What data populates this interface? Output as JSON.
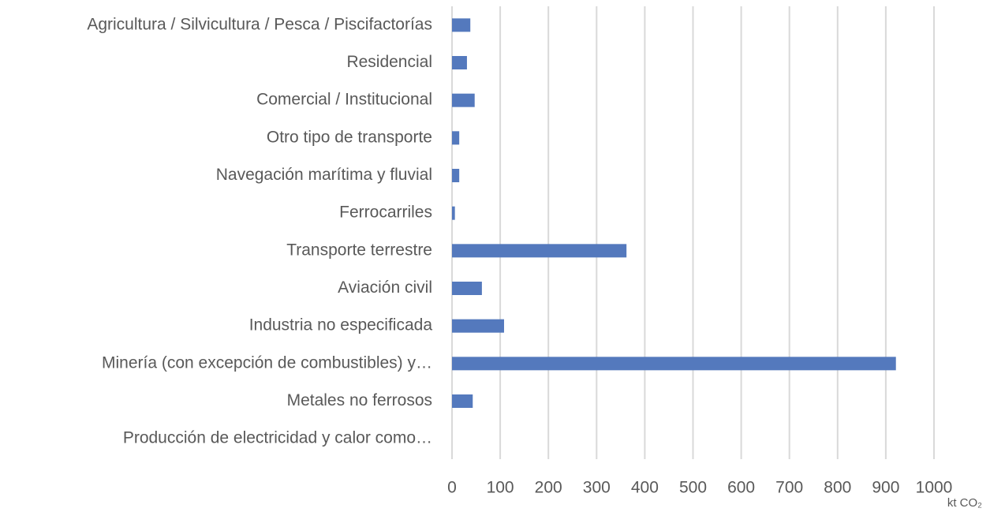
{
  "chart_data": {
    "type": "barh",
    "categories": [
      "Agricultura / Silvicultura / Pesca / Piscifactorías",
      "Residencial",
      "Comercial / Institucional",
      "Otro tipo de transporte",
      "Navegación marítima y fluvial",
      "Ferrocarriles",
      "Transporte terrestre",
      "Aviación civil",
      "Industria no especificada",
      "Minería (con excepción de combustibles) y…",
      "Metales no ferrosos",
      "Producción de electricidad y calor como…"
    ],
    "values": [
      38,
      31,
      47,
      15,
      15,
      6,
      362,
      62,
      108,
      921,
      43,
      0
    ],
    "color": "#5479bd",
    "xlim": [
      0,
      1000
    ],
    "xticks": [
      0,
      100,
      200,
      300,
      400,
      500,
      600,
      700,
      800,
      900,
      1000
    ],
    "xlabel": "kt CO₂",
    "grid": true
  }
}
